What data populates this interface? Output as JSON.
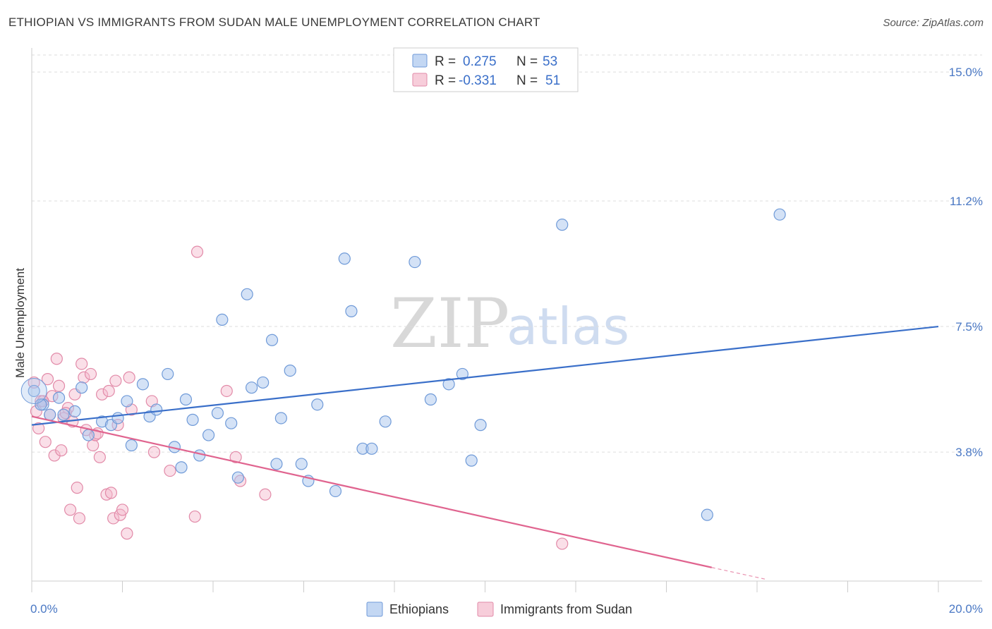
{
  "header": {
    "title": "ETHIOPIAN VS IMMIGRANTS FROM SUDAN MALE UNEMPLOYMENT CORRELATION CHART",
    "source": "Source: ZipAtlas.com"
  },
  "watermark": {
    "zip": "ZIP",
    "atlas": "atlas"
  },
  "colors": {
    "ethiopians": "#a9c6ee",
    "ethiopians_stroke": "#6f9ad8",
    "ethiopians_line": "#3a6fc9",
    "sudan": "#f4b8cb",
    "sudan_stroke": "#e28aa8",
    "sudan_line": "#e0648f",
    "grid": "#dddddd",
    "tick_text": "#4a78c4"
  },
  "legend": {
    "rows": [
      {
        "r_label": "R =",
        "r_value": "0.275",
        "n_label": "N =",
        "n_value": "53"
      },
      {
        "r_label": "R =",
        "r_value": "-0.331",
        "n_label": "N =",
        "n_value": "51"
      }
    ]
  },
  "bottom_legend": [
    "Ethiopians",
    "Immigrants from Sudan"
  ],
  "chart_data": {
    "type": "scatter",
    "title": "ETHIOPIAN VS IMMIGRANTS FROM SUDAN MALE UNEMPLOYMENT CORRELATION CHART",
    "xlabel": "",
    "ylabel": "Male Unemployment",
    "xlim": [
      0,
      20
    ],
    "ylim": [
      0,
      15.5
    ],
    "x_tick_labels": [
      "0.0%",
      "20.0%"
    ],
    "y_ticks": [
      3.8,
      7.5,
      11.2,
      15.0
    ],
    "y_tick_labels": [
      "3.8%",
      "7.5%",
      "11.2%",
      "15.0%"
    ],
    "grid": "horizontal dashed",
    "legend_position": "top-center",
    "series": [
      {
        "name": "Ethiopians",
        "r": 0.275,
        "n": 53,
        "trend": {
          "x": [
            0,
            20
          ],
          "y": [
            4.6,
            7.5
          ]
        },
        "points": [
          [
            0.05,
            5.6
          ],
          [
            0.25,
            5.2
          ],
          [
            0.4,
            4.9
          ],
          [
            0.6,
            5.4
          ],
          [
            0.7,
            4.9
          ],
          [
            0.95,
            5.0
          ],
          [
            1.1,
            5.7
          ],
          [
            1.25,
            4.3
          ],
          [
            1.55,
            4.7
          ],
          [
            1.75,
            4.6
          ],
          [
            1.9,
            4.8
          ],
          [
            2.1,
            5.3
          ],
          [
            2.2,
            4.0
          ],
          [
            2.45,
            5.8
          ],
          [
            2.6,
            4.85
          ],
          [
            2.75,
            5.05
          ],
          [
            3.0,
            6.1
          ],
          [
            3.15,
            3.95
          ],
          [
            3.3,
            3.35
          ],
          [
            3.4,
            5.35
          ],
          [
            3.55,
            4.75
          ],
          [
            3.7,
            3.7
          ],
          [
            3.9,
            4.3
          ],
          [
            4.1,
            4.95
          ],
          [
            4.2,
            7.7
          ],
          [
            4.4,
            4.65
          ],
          [
            4.55,
            3.05
          ],
          [
            4.75,
            8.45
          ],
          [
            4.85,
            5.7
          ],
          [
            5.1,
            5.85
          ],
          [
            5.3,
            7.1
          ],
          [
            5.4,
            3.45
          ],
          [
            5.5,
            4.8
          ],
          [
            5.7,
            6.2
          ],
          [
            5.95,
            3.45
          ],
          [
            6.1,
            2.95
          ],
          [
            6.3,
            5.2
          ],
          [
            6.7,
            2.65
          ],
          [
            6.9,
            9.5
          ],
          [
            7.05,
            7.95
          ],
          [
            7.3,
            3.9
          ],
          [
            7.5,
            3.9
          ],
          [
            7.8,
            4.7
          ],
          [
            8.45,
            9.4
          ],
          [
            8.8,
            5.35
          ],
          [
            9.2,
            5.8
          ],
          [
            9.5,
            6.1
          ],
          [
            9.7,
            3.55
          ],
          [
            9.9,
            4.6
          ],
          [
            11.7,
            10.5
          ],
          [
            14.9,
            1.95
          ],
          [
            16.5,
            10.8
          ],
          [
            0.2,
            5.2
          ]
        ]
      },
      {
        "name": "Immigrants from Sudan",
        "r": -0.331,
        "n": 51,
        "trend": {
          "x": [
            0,
            15
          ],
          "y": [
            4.85,
            0.4
          ]
        },
        "trend_dashed_extension": {
          "x": [
            15,
            16.2
          ],
          "y": [
            0.4,
            0.05
          ]
        },
        "points": [
          [
            0.05,
            5.85
          ],
          [
            0.1,
            5.0
          ],
          [
            0.15,
            4.5
          ],
          [
            0.2,
            5.3
          ],
          [
            0.3,
            4.1
          ],
          [
            0.35,
            5.95
          ],
          [
            0.45,
            5.45
          ],
          [
            0.5,
            3.7
          ],
          [
            0.55,
            6.55
          ],
          [
            0.6,
            5.75
          ],
          [
            0.65,
            3.85
          ],
          [
            0.7,
            4.8
          ],
          [
            0.8,
            5.1
          ],
          [
            0.85,
            2.1
          ],
          [
            0.9,
            4.7
          ],
          [
            0.95,
            5.5
          ],
          [
            1.0,
            2.75
          ],
          [
            1.05,
            1.85
          ],
          [
            1.1,
            6.4
          ],
          [
            1.15,
            6.0
          ],
          [
            1.2,
            4.45
          ],
          [
            1.3,
            6.1
          ],
          [
            1.35,
            4.0
          ],
          [
            1.4,
            4.3
          ],
          [
            1.5,
            3.65
          ],
          [
            1.55,
            5.5
          ],
          [
            1.65,
            2.55
          ],
          [
            1.7,
            5.6
          ],
          [
            1.75,
            2.6
          ],
          [
            1.8,
            1.85
          ],
          [
            1.85,
            5.9
          ],
          [
            1.9,
            4.6
          ],
          [
            1.95,
            1.95
          ],
          [
            2.0,
            2.1
          ],
          [
            2.1,
            1.4
          ],
          [
            2.2,
            5.05
          ],
          [
            2.15,
            6.0
          ],
          [
            2.65,
            5.3
          ],
          [
            2.7,
            3.8
          ],
          [
            3.05,
            3.25
          ],
          [
            3.6,
            1.9
          ],
          [
            3.65,
            9.7
          ],
          [
            4.3,
            5.6
          ],
          [
            4.5,
            3.65
          ],
          [
            4.6,
            2.95
          ],
          [
            5.15,
            2.55
          ],
          [
            11.7,
            1.1
          ],
          [
            0.4,
            4.9
          ],
          [
            0.75,
            4.95
          ],
          [
            1.45,
            4.35
          ],
          [
            0.25,
            5.3
          ]
        ]
      }
    ]
  }
}
